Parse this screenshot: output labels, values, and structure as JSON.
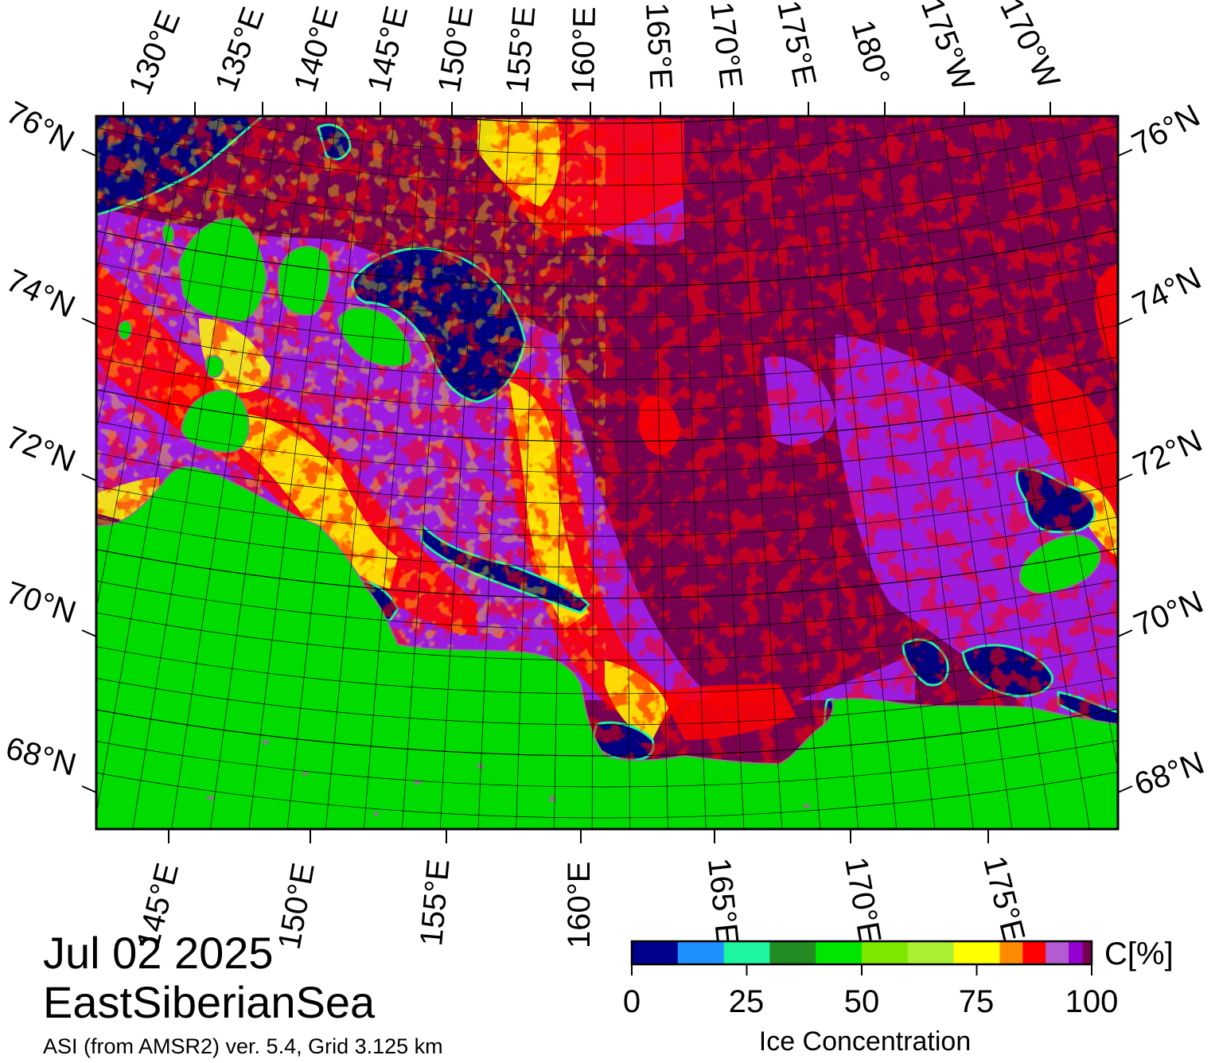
{
  "date": "Jul 02 2025",
  "region": "EastSiberianSea",
  "product": "ASI (from AMSR2) ver. 5.4,  Grid 3.125 km",
  "colorbar": {
    "unit": "C[%]",
    "title": "Ice Concentration",
    "ticks": [
      "0",
      "25",
      "50",
      "75",
      "100"
    ],
    "colors": [
      "#00008c",
      "#1e90ff",
      "#1ef5a0",
      "#228b22",
      "#00e600",
      "#7fe600",
      "#aaf032",
      "#ffff00",
      "#ff8c00",
      "#ff0000",
      "#b45ad2",
      "#9600d2",
      "#780050"
    ]
  },
  "map": {
    "colors": {
      "land": "#00dc00",
      "land_ice": "#808080",
      "open_water": "#000080",
      "pack_ice": "#780050",
      "high_ice": "#a020f0",
      "mid_ice": "#ff0000",
      "low_ice": "#ffff00",
      "frame": "#000000"
    },
    "lat_labels": [
      "76°N",
      "74°N",
      "72°N",
      "70°N",
      "68°N"
    ],
    "top_lon_labels": [
      "130°E",
      "135°E",
      "140°E",
      "145°E",
      "150°E",
      "155°E",
      "160°E",
      "165°E",
      "170°E",
      "175°E",
      "180°",
      "175°W",
      "170°W"
    ],
    "bottom_lon_labels": [
      "145°E",
      "150°E",
      "155°E",
      "160°E",
      "165°E",
      "170°E",
      "175°E"
    ]
  }
}
